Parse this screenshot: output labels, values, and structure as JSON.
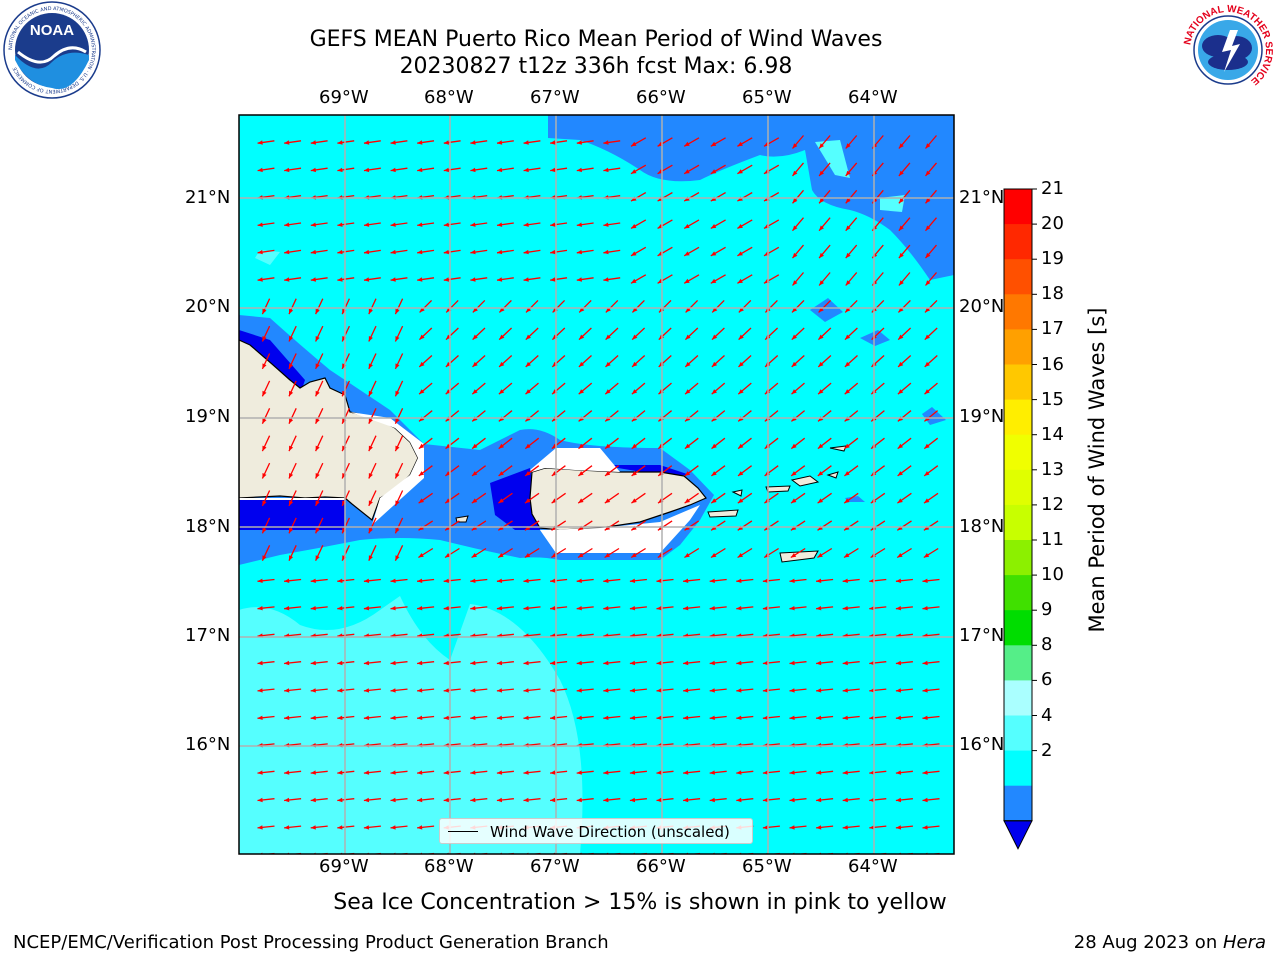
{
  "header": {
    "title_line1": "GEFS MEAN Puerto Rico Mean Period of Wind Waves",
    "title_line2": "20230827 t12z 336h fcst   Max: 6.98"
  },
  "logos": {
    "left": "noaa-logo",
    "right": "nws-logo",
    "left_text": "NOAA",
    "left_ring_text": "NATIONAL OCEANIC AND ATMOSPHERIC ADMINISTRATION · U.S. DEPARTMENT OF COMMERCE",
    "right_ring_text": "NATIONAL WEATHER SERVICE"
  },
  "map": {
    "lon_labels": [
      "69°W",
      "68°W",
      "67°W",
      "66°W",
      "65°W",
      "64°W"
    ],
    "lat_labels": [
      "21°N",
      "20°N",
      "19°N",
      "18°N",
      "17°N",
      "16°N"
    ],
    "legend_label": "Wind Wave Direction (unscaled)",
    "colors": {
      "ocean_main": "#00ffff",
      "ocean_light": "#55ffff",
      "ocean_low": "#2288ff",
      "ocean_lowest": "#0000ee",
      "land": "#efecdd",
      "arrow": "#ff0000",
      "grid": "#b0b0b0"
    }
  },
  "colorbar": {
    "title": "Mean Period of Wind Waves [s]",
    "ticks": [
      "21",
      "20",
      "19",
      "18",
      "17",
      "16",
      "15",
      "14",
      "13",
      "12",
      "11",
      "10",
      "9",
      "8",
      "6",
      "4",
      "2"
    ],
    "colors": [
      "#ff0000",
      "#ff2800",
      "#ff5000",
      "#ff7800",
      "#ffa000",
      "#ffc800",
      "#ffee00",
      "#f0ff00",
      "#e0ff00",
      "#c8ff00",
      "#8cf000",
      "#40e000",
      "#00dd00",
      "#55ee88",
      "#aaffff",
      "#55ffff",
      "#00ffff",
      "#2288ff",
      "#0000ee"
    ]
  },
  "footer": {
    "sea_ice_note": "Sea Ice Concentration > 15% is shown in pink to yellow",
    "credit_left": "NCEP/EMC/Verification Post Processing Product Generation Branch",
    "credit_right_prefix": "28 Aug 2023 on ",
    "credit_right_machine": "Hera"
  }
}
